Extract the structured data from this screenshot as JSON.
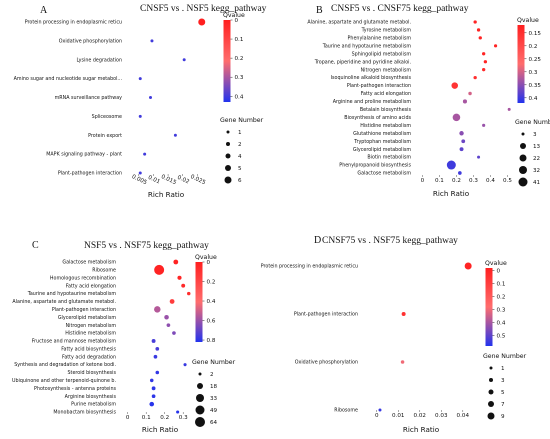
{
  "chart_data": [
    {
      "panel": "A",
      "type": "scatter",
      "title": "CNSF5 vs . NSF5 kegg_pathway",
      "xlabel": "Rich Ratio",
      "ylabel": "",
      "x_ticks": [
        "0.005",
        "0.01",
        "0.015",
        "0.02",
        "0.025"
      ],
      "xlim": [
        0.002,
        0.03
      ],
      "color_legend": {
        "title": "Qvalue",
        "ticks": [
          "0",
          "0.1",
          "0.2",
          "0.3",
          "0.4"
        ],
        "range": [
          0,
          0.43
        ],
        "low_color": "#ff1f1f",
        "high_color": "#2233ee"
      },
      "size_legend": {
        "title": "Gene Number",
        "values": [
          1,
          2,
          4,
          5,
          6
        ]
      },
      "categories": [
        "Protein processing in endoplasmic reticu",
        "Oxidative phosphorylation",
        "Lysine degradation",
        "Amino sugar and nucleotide sugar metabol...",
        "mRNA surveillance pathway",
        "Spliceosome",
        "Protein export",
        "MAPK signaling pathway - plant",
        "Plant-pathogen interaction"
      ],
      "points": [
        {
          "y": "Protein processing in endoplasmic reticu",
          "x": 0.0265,
          "q": 0.0,
          "genes": 6
        },
        {
          "y": "Oxidative phosphorylation",
          "x": 0.0095,
          "q": 0.4,
          "genes": 1
        },
        {
          "y": "Lysine degradation",
          "x": 0.0205,
          "q": 0.4,
          "genes": 1
        },
        {
          "y": "Amino sugar and nucleotide sugar metabol...",
          "x": 0.0055,
          "q": 0.4,
          "genes": 1
        },
        {
          "y": "mRNA surveillance pathway",
          "x": 0.009,
          "q": 0.4,
          "genes": 1
        },
        {
          "y": "Spliceosome",
          "x": 0.0055,
          "q": 0.4,
          "genes": 1
        },
        {
          "y": "Protein export",
          "x": 0.0175,
          "q": 0.4,
          "genes": 1
        },
        {
          "y": "MAPK signaling pathway - plant",
          "x": 0.007,
          "q": 0.4,
          "genes": 1
        },
        {
          "y": "Plant-pathogen interaction",
          "x": 0.0055,
          "q": 0.4,
          "genes": 1
        }
      ]
    },
    {
      "panel": "B",
      "type": "scatter",
      "title": "CNSF5 vs . CNSF75 kegg_pathway",
      "xlabel": "Rich Ratio",
      "ylabel": "",
      "x_ticks": [
        "0",
        "0.1",
        "0.2",
        "0.3",
        "0.4",
        "0.5"
      ],
      "xlim": [
        -0.02,
        0.55
      ],
      "color_legend": {
        "title": "Qvalue",
        "ticks": [
          "0.15",
          "0.2",
          "0.25",
          "0.3",
          "0.35",
          "0.4"
        ],
        "range": [
          0.12,
          0.42
        ],
        "low_color": "#ff1f1f",
        "high_color": "#2233ee"
      },
      "size_legend": {
        "title": "Gene Number",
        "values": [
          3,
          13,
          22,
          32,
          41
        ]
      },
      "categories": [
        "Alanine, aspartate and glutamate metabol.",
        "Tyrosine metabolism",
        "Phenylalanine metabolism",
        "Taurine and hypotaurine metabolism",
        "Sphingolipid metabolism",
        "Tropane, piperidine and pyridine alkaloi.",
        "Nitrogen metabolism",
        "Isoquinoline alkaloid biosynthesis",
        "Plant-pathogen interaction",
        "Fatty acid elongation",
        "Arginine and proline metabolism",
        "Betalain biosynthesis",
        "Biosynthesis of amino acids",
        "Histidine metabolism",
        "Glutathione metabolism",
        "Tryptophan metabolism",
        "Glycerolipid metabolism",
        "Biotin metabolism",
        "Phenylpropanoid biosynthesis",
        "Galactose metabolism"
      ],
      "points": [
        {
          "y": "Alanine, aspartate and glutamate metabol.",
          "x": 0.31,
          "q": 0.13,
          "genes": 5
        },
        {
          "y": "Tyrosine metabolism",
          "x": 0.33,
          "q": 0.13,
          "genes": 5
        },
        {
          "y": "Phenylalanine metabolism",
          "x": 0.34,
          "q": 0.13,
          "genes": 5
        },
        {
          "y": "Taurine and hypotaurine metabolism",
          "x": 0.43,
          "q": 0.13,
          "genes": 4
        },
        {
          "y": "Sphingolipid metabolism",
          "x": 0.36,
          "q": 0.13,
          "genes": 5
        },
        {
          "y": "Tropane, piperidine and pyridine alkaloi.",
          "x": 0.37,
          "q": 0.13,
          "genes": 5
        },
        {
          "y": "Nitrogen metabolism",
          "x": 0.36,
          "q": 0.14,
          "genes": 5
        },
        {
          "y": "Isoquinoline alkaloid biosynthesis",
          "x": 0.31,
          "q": 0.15,
          "genes": 5
        },
        {
          "y": "Plant-pathogen interaction",
          "x": 0.19,
          "q": 0.16,
          "genes": 25
        },
        {
          "y": "Fatty acid elongation",
          "x": 0.28,
          "q": 0.3,
          "genes": 6
        },
        {
          "y": "Arginine and proline metabolism",
          "x": 0.25,
          "q": 0.33,
          "genes": 10
        },
        {
          "y": "Betalain biosynthesis",
          "x": 0.51,
          "q": 0.33,
          "genes": 3
        },
        {
          "y": "Biosynthesis of amino acids",
          "x": 0.2,
          "q": 0.33,
          "genes": 32
        },
        {
          "y": "Histidine metabolism",
          "x": 0.36,
          "q": 0.34,
          "genes": 4
        },
        {
          "y": "Glutathione metabolism",
          "x": 0.23,
          "q": 0.35,
          "genes": 12
        },
        {
          "y": "Tryptophan metabolism",
          "x": 0.24,
          "q": 0.37,
          "genes": 8
        },
        {
          "y": "Glycerolipid metabolism",
          "x": 0.23,
          "q": 0.38,
          "genes": 9
        },
        {
          "y": "Biotin metabolism",
          "x": 0.33,
          "q": 0.38,
          "genes": 3
        },
        {
          "y": "Phenylpropanoid biosynthesis",
          "x": 0.17,
          "q": 0.4,
          "genes": 41
        },
        {
          "y": "Galactose metabolism",
          "x": 0.22,
          "q": 0.4,
          "genes": 7
        }
      ]
    },
    {
      "panel": "C",
      "type": "scatter",
      "title": "NSF5 vs . NSF75 kegg_pathway",
      "xlabel": "Rich Ratio",
      "ylabel": "",
      "x_ticks": [
        "0",
        "0.1",
        "0.2",
        "0.3"
      ],
      "xlim": [
        -0.02,
        0.38
      ],
      "color_legend": {
        "title": "Qvalue",
        "ticks": [
          "0",
          "0.2",
          "0.4",
          "0.6",
          "0.8"
        ],
        "range": [
          0,
          0.82
        ],
        "low_color": "#ff1f1f",
        "high_color": "#2233ee"
      },
      "size_legend": {
        "title": "Gene Number",
        "values": [
          2,
          18,
          33,
          49,
          64
        ]
      },
      "categories": [
        "Galactose metabolism",
        "Ribosome",
        "Homologous recombination",
        "Fatty acid elongation",
        "Taurine and hypotaurine metabolism",
        "Alanine, aspartate and glutamate metabol.",
        "Plant-pathogen interaction",
        "Glycerolipid metabolism",
        "Nitrogen metabolism",
        "Histidine metabolism",
        "Fructose and mannose metabolism",
        "Fatty acid biosynthesis",
        "Fatty acid degradation",
        "Synthesis and degradation of ketone bodi.",
        "Steroid biosynthesis",
        "Ubiquinone and other terpenoid-quinone b.",
        "Photosynthesis - antenna proteins",
        "Arginine biosynthesis",
        "Purine metabolism",
        "Monobactam biosynthesis"
      ],
      "points": [
        {
          "y": "Galactose metabolism",
          "x": 0.26,
          "q": 0.02,
          "genes": 18
        },
        {
          "y": "Ribosome",
          "x": 0.17,
          "q": 0.02,
          "genes": 64
        },
        {
          "y": "Homologous recombination",
          "x": 0.28,
          "q": 0.03,
          "genes": 12
        },
        {
          "y": "Fatty acid elongation",
          "x": 0.3,
          "q": 0.05,
          "genes": 10
        },
        {
          "y": "Taurine and hypotaurine metabolism",
          "x": 0.33,
          "q": 0.08,
          "genes": 6
        },
        {
          "y": "Alanine, aspartate and glutamate metabol.",
          "x": 0.24,
          "q": 0.15,
          "genes": 18
        },
        {
          "y": "Plant-pathogen interaction",
          "x": 0.16,
          "q": 0.55,
          "genes": 33
        },
        {
          "y": "Glycerolipid metabolism",
          "x": 0.21,
          "q": 0.6,
          "genes": 16
        },
        {
          "y": "Nitrogen metabolism",
          "x": 0.22,
          "q": 0.62,
          "genes": 8
        },
        {
          "y": "Histidine metabolism",
          "x": 0.25,
          "q": 0.65,
          "genes": 8
        },
        {
          "y": "Fructose and mannose metabolism",
          "x": 0.14,
          "q": 0.75,
          "genes": 10
        },
        {
          "y": "Fatty acid biosynthesis",
          "x": 0.16,
          "q": 0.75,
          "genes": 8
        },
        {
          "y": "Fatty acid degradation",
          "x": 0.15,
          "q": 0.78,
          "genes": 8
        },
        {
          "y": "Synthesis and degradation of ketone bodi.",
          "x": 0.31,
          "q": 0.78,
          "genes": 3
        },
        {
          "y": "Steroid biosynthesis",
          "x": 0.16,
          "q": 0.79,
          "genes": 7
        },
        {
          "y": "Ubiquinone and other terpenoid-quinone b.",
          "x": 0.13,
          "q": 0.79,
          "genes": 7
        },
        {
          "y": "Photosynthesis - antenna proteins",
          "x": 0.14,
          "q": 0.8,
          "genes": 9
        },
        {
          "y": "Arginine biosynthesis",
          "x": 0.14,
          "q": 0.8,
          "genes": 8
        },
        {
          "y": "Purine metabolism",
          "x": 0.13,
          "q": 0.81,
          "genes": 16
        },
        {
          "y": "Monobactam biosynthesis",
          "x": 0.27,
          "q": 0.81,
          "genes": 3
        }
      ]
    },
    {
      "panel": "D",
      "type": "scatter",
      "title": "CNSF75 vs . NSF75 kegg_pathway",
      "xlabel": "Rich Ratio",
      "ylabel": "",
      "x_ticks": [
        "0",
        "0.01",
        "0.02",
        "0.03",
        "0.04"
      ],
      "xlim": [
        -0.005,
        0.048
      ],
      "color_legend": {
        "title": "Qvalue",
        "ticks": [
          "0",
          "0.1",
          "0.2",
          "0.3",
          "0.4",
          "0.5"
        ],
        "range": [
          -0.02,
          0.58
        ],
        "low_color": "#ff1f1f",
        "high_color": "#2233ee"
      },
      "size_legend": {
        "title": "Gene Number",
        "values": [
          1,
          3,
          5,
          7,
          9
        ]
      },
      "categories": [
        "Protein processing in endoplasmic reticu",
        "Plant-pathogen interaction",
        "Oxidative phosphorylation",
        "Ribosome"
      ],
      "points": [
        {
          "y": "Protein processing in endoplasmic reticu",
          "x": 0.0425,
          "q": 0.0,
          "genes": 9
        },
        {
          "y": "Plant-pathogen interaction",
          "x": 0.0125,
          "q": 0.05,
          "genes": 3
        },
        {
          "y": "Oxidative phosphorylation",
          "x": 0.012,
          "q": 0.3,
          "genes": 2
        },
        {
          "y": "Ribosome",
          "x": 0.0015,
          "q": 0.55,
          "genes": 1
        }
      ]
    }
  ]
}
